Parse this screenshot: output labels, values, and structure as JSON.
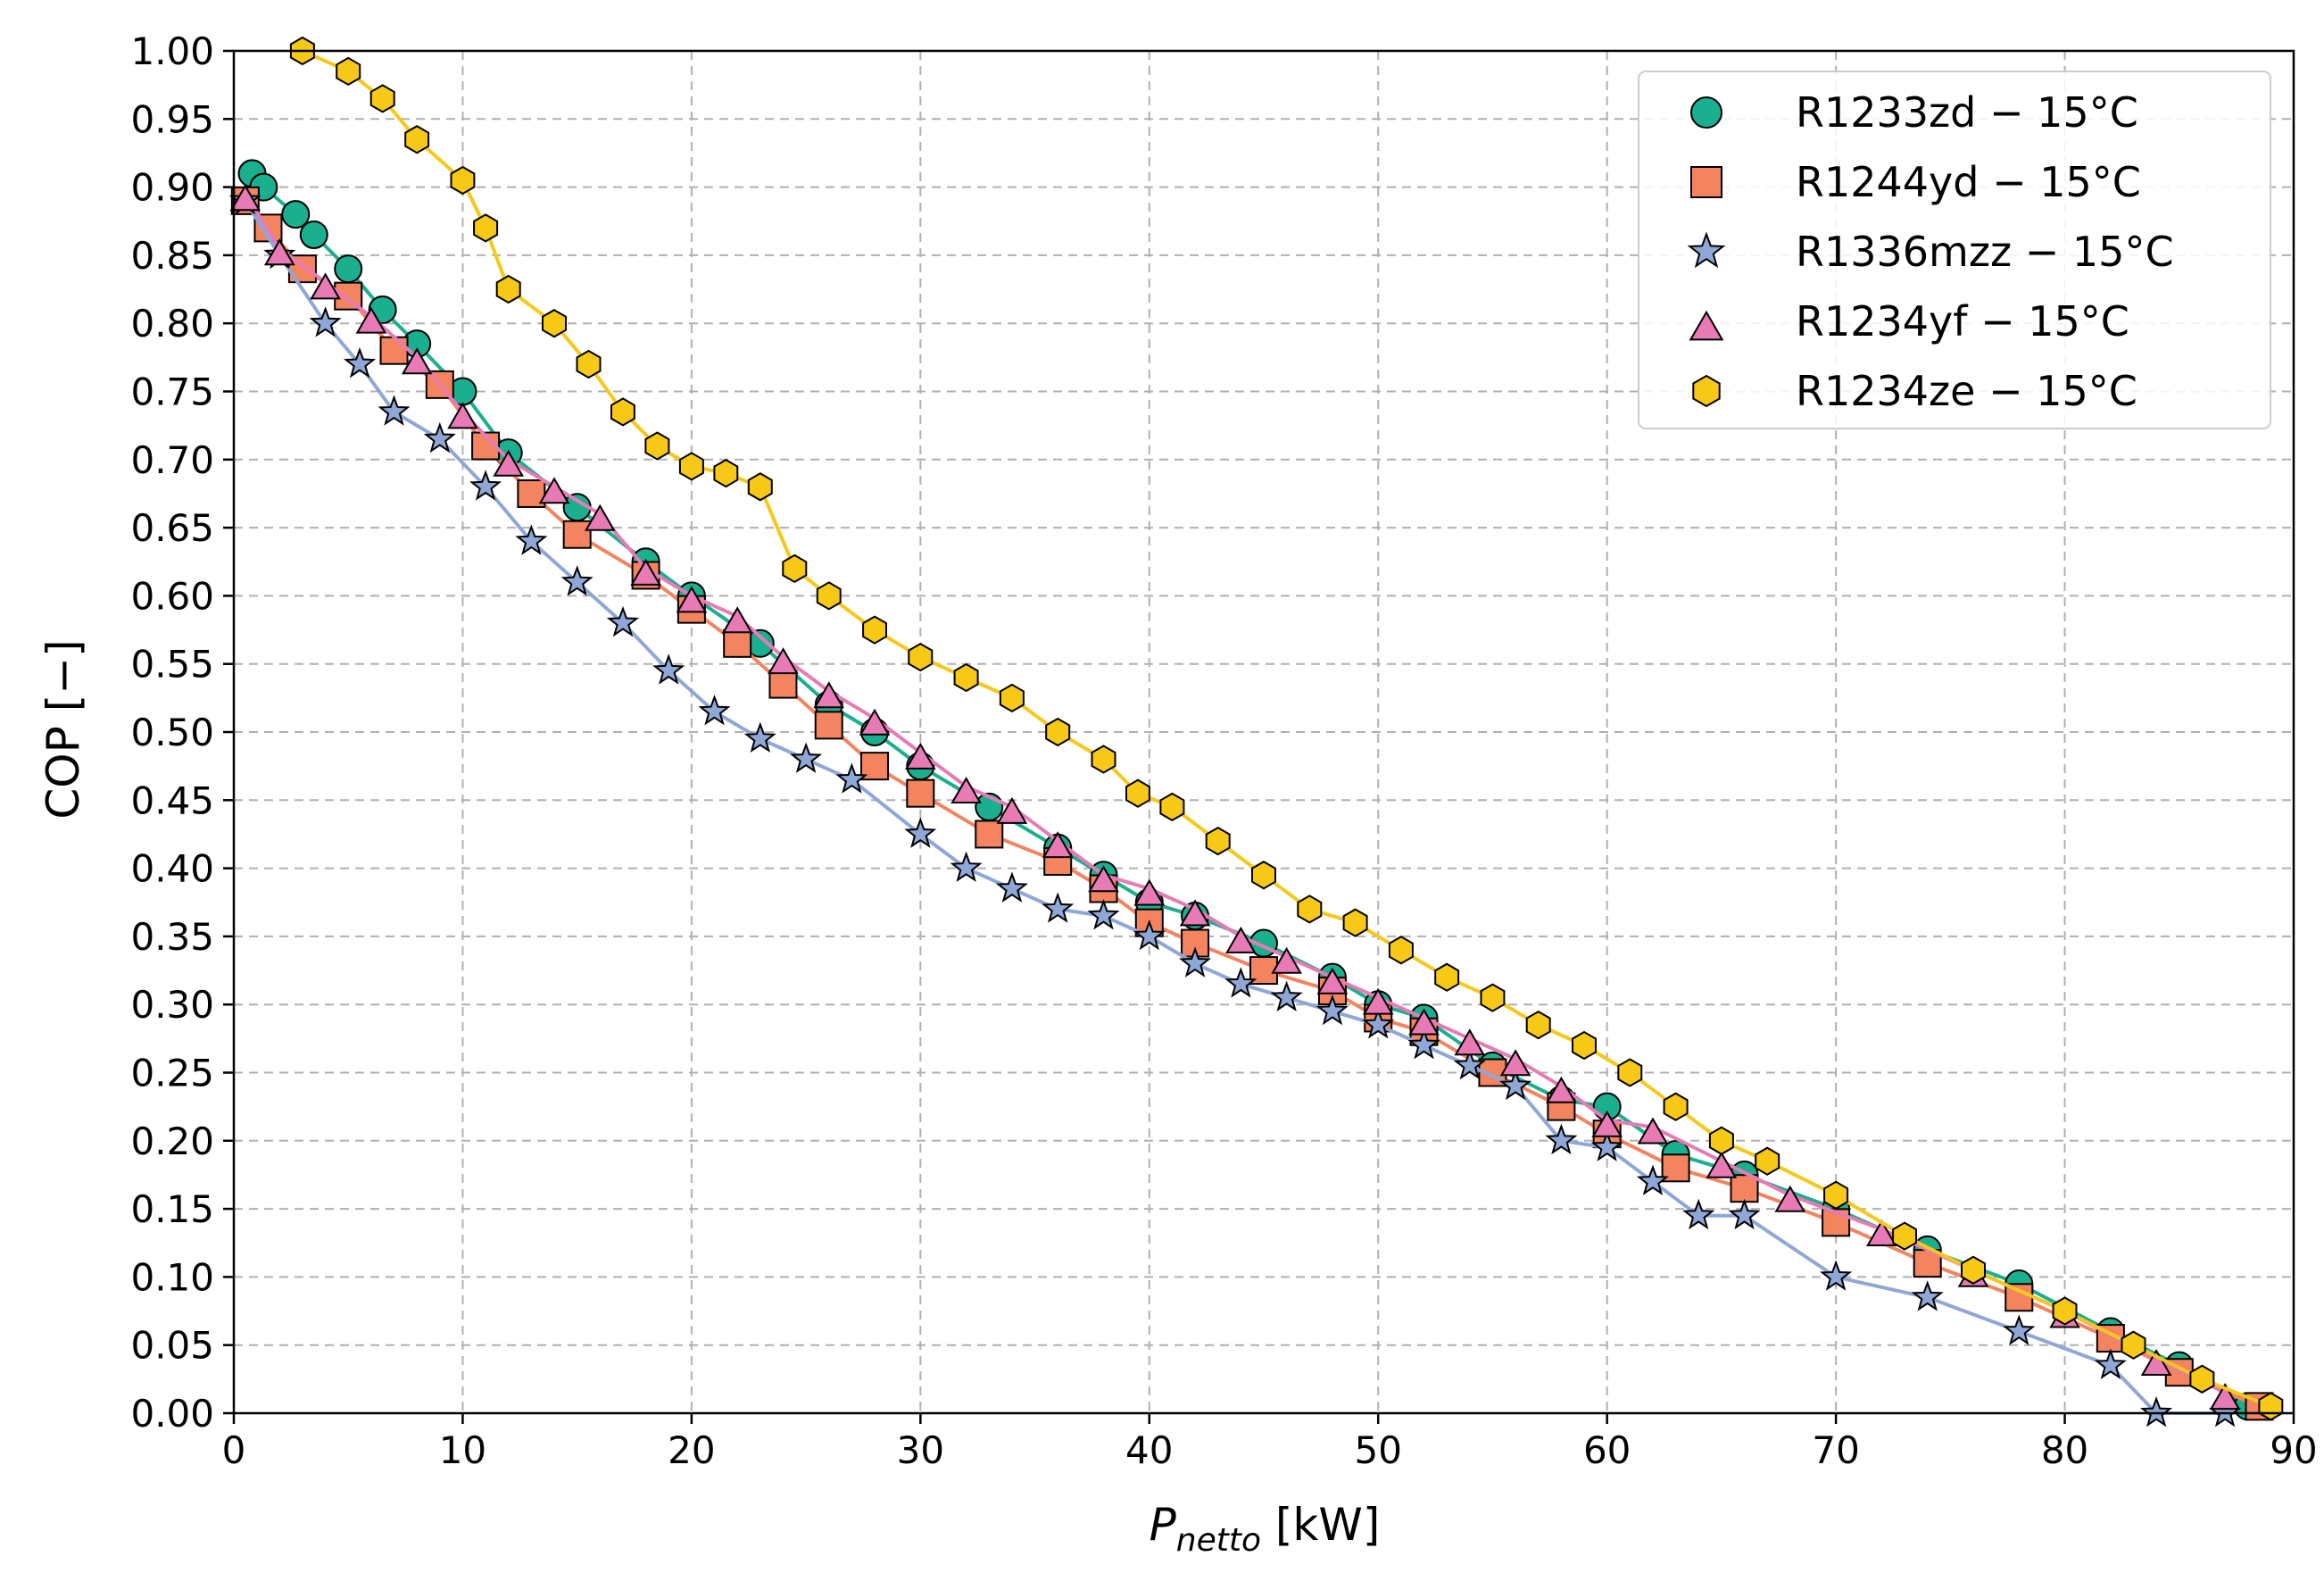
{
  "chart_data": {
    "type": "line",
    "xlabel": {
      "main": "P",
      "sub": "netto",
      "unit": " [kW]"
    },
    "ylabel": "COP [−]",
    "xlim": [
      0,
      90
    ],
    "ylim": [
      0,
      1.0
    ],
    "x_ticks": [
      "0",
      "10",
      "20",
      "30",
      "40",
      "50",
      "60",
      "70",
      "80",
      "90"
    ],
    "y_ticks": [
      "0.00",
      "0.05",
      "0.10",
      "0.15",
      "0.20",
      "0.25",
      "0.30",
      "0.35",
      "0.40",
      "0.45",
      "0.50",
      "0.55",
      "0.60",
      "0.65",
      "0.70",
      "0.75",
      "0.80",
      "0.85",
      "0.90",
      "0.95",
      "1.00"
    ],
    "grid": true,
    "legend_position": "top-right",
    "series": [
      {
        "name": "R1233zd − 15°C",
        "color": "#1aaf8e",
        "marker": "circle",
        "x": [
          0.8,
          1.3,
          2.7,
          3.5,
          5.0,
          6.5,
          8.0,
          10.0,
          12.0,
          15.0,
          18.0,
          20.0,
          23.0,
          26.0,
          28.0,
          30.0,
          33.0,
          36.0,
          38.0,
          40.0,
          42.0,
          45.0,
          48.0,
          50.0,
          52.0,
          55.0,
          58.0,
          60.0,
          63.0,
          66.0,
          70.0,
          74.0,
          78.0,
          82.0,
          85.0,
          88.0
        ],
        "y": [
          0.91,
          0.9,
          0.88,
          0.865,
          0.84,
          0.81,
          0.785,
          0.75,
          0.705,
          0.665,
          0.625,
          0.6,
          0.565,
          0.52,
          0.5,
          0.475,
          0.445,
          0.415,
          0.395,
          0.375,
          0.365,
          0.345,
          0.32,
          0.3,
          0.29,
          0.255,
          0.23,
          0.225,
          0.19,
          0.175,
          0.15,
          0.12,
          0.095,
          0.06,
          0.035,
          0.005
        ]
      },
      {
        "name": "R1244yd − 15°C",
        "color": "#f4845f",
        "marker": "square",
        "x": [
          0.5,
          1.5,
          3.0,
          5.0,
          7.0,
          9.0,
          11.0,
          13.0,
          15.0,
          18.0,
          20.0,
          22.0,
          24.0,
          26.0,
          28.0,
          30.0,
          33.0,
          36.0,
          38.0,
          40.0,
          42.0,
          45.0,
          48.0,
          50.0,
          52.0,
          55.0,
          58.0,
          60.0,
          63.0,
          66.0,
          70.0,
          74.0,
          78.0,
          82.0,
          85.0,
          88.5
        ],
        "y": [
          0.89,
          0.87,
          0.84,
          0.82,
          0.78,
          0.755,
          0.71,
          0.675,
          0.645,
          0.615,
          0.59,
          0.565,
          0.535,
          0.505,
          0.475,
          0.455,
          0.425,
          0.405,
          0.385,
          0.36,
          0.345,
          0.325,
          0.31,
          0.29,
          0.28,
          0.25,
          0.225,
          0.205,
          0.18,
          0.165,
          0.14,
          0.11,
          0.085,
          0.055,
          0.03,
          0.005
        ]
      },
      {
        "name": "R1336mzz − 15°C",
        "color": "#8ea7d6",
        "marker": "star",
        "x": [
          0.5,
          2.0,
          4.0,
          5.5,
          7.0,
          9.0,
          11.0,
          13.0,
          15.0,
          17.0,
          19.0,
          21.0,
          23.0,
          25.0,
          27.0,
          30.0,
          32.0,
          34.0,
          36.0,
          38.0,
          40.0,
          42.0,
          44.0,
          46.0,
          48.0,
          50.0,
          52.0,
          54.0,
          56.0,
          58.0,
          60.0,
          62.0,
          64.0,
          66.0,
          70.0,
          74.0,
          78.0,
          82.0,
          84.0,
          87.0
        ],
        "y": [
          0.89,
          0.85,
          0.8,
          0.77,
          0.735,
          0.715,
          0.68,
          0.64,
          0.61,
          0.58,
          0.545,
          0.515,
          0.495,
          0.48,
          0.465,
          0.425,
          0.4,
          0.385,
          0.37,
          0.365,
          0.35,
          0.33,
          0.315,
          0.305,
          0.295,
          0.285,
          0.27,
          0.255,
          0.24,
          0.2,
          0.195,
          0.17,
          0.145,
          0.145,
          0.1,
          0.085,
          0.06,
          0.035,
          0.0,
          0.0
        ]
      },
      {
        "name": "R1234yf − 15°C",
        "color": "#e87ab5",
        "marker": "triangle",
        "x": [
          0.5,
          2.0,
          4.0,
          6.0,
          8.0,
          10.0,
          12.0,
          14.0,
          16.0,
          18.0,
          20.0,
          22.0,
          24.0,
          26.0,
          28.0,
          30.0,
          32.0,
          34.0,
          36.0,
          38.0,
          40.0,
          42.0,
          44.0,
          46.0,
          48.0,
          50.0,
          52.0,
          54.0,
          56.0,
          58.0,
          60.0,
          62.0,
          65.0,
          68.0,
          72.0,
          76.0,
          80.0,
          84.0,
          87.0
        ],
        "y": [
          0.895,
          0.855,
          0.83,
          0.805,
          0.775,
          0.735,
          0.7,
          0.68,
          0.66,
          0.62,
          0.6,
          0.585,
          0.555,
          0.53,
          0.51,
          0.485,
          0.46,
          0.445,
          0.42,
          0.395,
          0.385,
          0.37,
          0.35,
          0.335,
          0.32,
          0.305,
          0.29,
          0.275,
          0.26,
          0.24,
          0.215,
          0.21,
          0.185,
          0.16,
          0.135,
          0.105,
          0.075,
          0.04,
          0.015
        ]
      },
      {
        "name": "R1234ze − 15°C",
        "color": "#f7c815",
        "marker": "hexagon",
        "x": [
          3.0,
          5.0,
          6.5,
          8.0,
          10.0,
          11.0,
          12.0,
          14.0,
          15.5,
          17.0,
          18.5,
          20.0,
          21.5,
          23.0,
          24.5,
          26.0,
          28.0,
          30.0,
          32.0,
          34.0,
          36.0,
          38.0,
          39.5,
          41.0,
          43.0,
          45.0,
          47.0,
          49.0,
          51.0,
          53.0,
          55.0,
          57.0,
          59.0,
          61.0,
          63.0,
          65.0,
          67.0,
          70.0,
          73.0,
          76.0,
          80.0,
          83.0,
          86.0,
          89.0
        ],
        "y": [
          1.0,
          0.985,
          0.965,
          0.935,
          0.905,
          0.87,
          0.825,
          0.8,
          0.77,
          0.735,
          0.71,
          0.695,
          0.69,
          0.68,
          0.62,
          0.6,
          0.575,
          0.555,
          0.54,
          0.525,
          0.5,
          0.48,
          0.455,
          0.445,
          0.42,
          0.395,
          0.37,
          0.36,
          0.34,
          0.32,
          0.305,
          0.285,
          0.27,
          0.25,
          0.225,
          0.2,
          0.185,
          0.16,
          0.13,
          0.105,
          0.075,
          0.05,
          0.025,
          0.005
        ]
      }
    ]
  }
}
